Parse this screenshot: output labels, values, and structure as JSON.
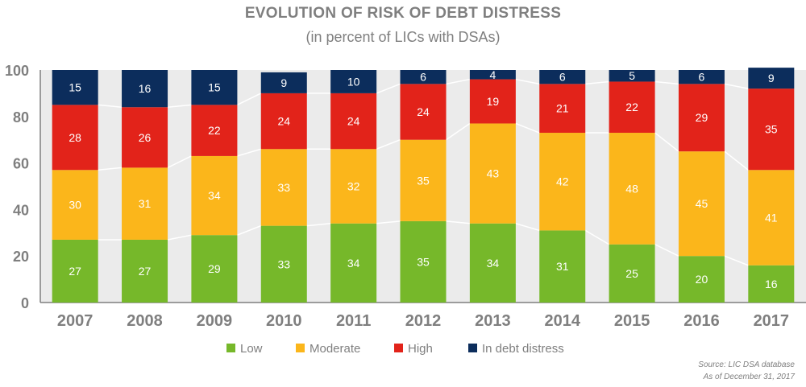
{
  "chart_data": {
    "type": "bar",
    "stacked": true,
    "title": "EVOLUTION OF RISK OF DEBT DISTRESS",
    "subtitle": "(in percent of LICs with DSAs)",
    "categories": [
      "2007",
      "2008",
      "2009",
      "2010",
      "2011",
      "2012",
      "2013",
      "2014",
      "2015",
      "2016",
      "2017"
    ],
    "series": [
      {
        "name": "Low",
        "color": "#76b82a",
        "values": [
          27,
          27,
          29,
          33,
          34,
          35,
          34,
          31,
          25,
          20,
          16
        ]
      },
      {
        "name": "Moderate",
        "color": "#fbb61b",
        "values": [
          30,
          31,
          34,
          33,
          32,
          35,
          43,
          42,
          48,
          45,
          41
        ]
      },
      {
        "name": "High",
        "color": "#e2231a",
        "values": [
          28,
          26,
          22,
          24,
          24,
          24,
          19,
          21,
          22,
          29,
          35
        ]
      },
      {
        "name": "In debt distress",
        "color": "#0c2d5c",
        "values": [
          15,
          16,
          15,
          9,
          10,
          6,
          4,
          6,
          5,
          6,
          9
        ]
      }
    ],
    "ylim": [
      0,
      100
    ],
    "yticks": [
      0,
      20,
      40,
      60,
      80,
      100
    ],
    "legend": "bottom-center",
    "grid": false
  },
  "source": {
    "line1": "Source: LIC DSA database",
    "line2": "As of December 31, 2017"
  }
}
